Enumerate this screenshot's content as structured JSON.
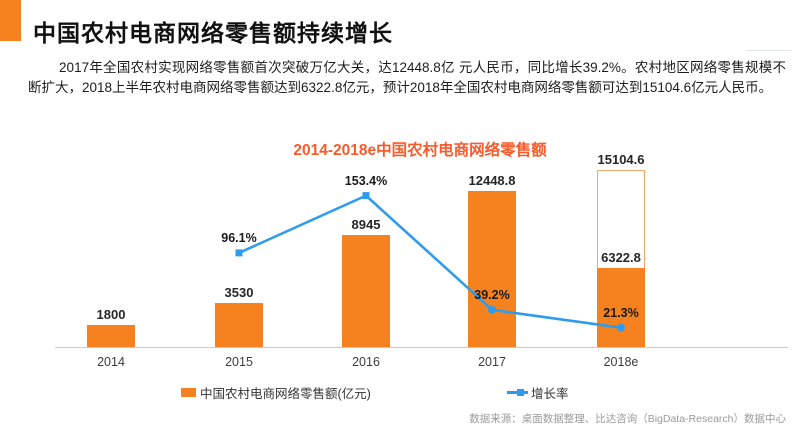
{
  "header": {
    "title": "中国农村电商网络零售额持续增长",
    "accent_color": "#F5821F"
  },
  "body_text": "2017年全国农村实现网络零售额首次突破万亿大关，达12448.8亿 元人民币，同比增长39.2%。农村地区网络零售规模不断扩大，2018上半年农村电商网络零售额达到6322.8亿元，预计2018年全国农村电商网络零售额可达到15104.6亿元人民币。",
  "chart_data": {
    "type": "bar",
    "combo": "bar+line",
    "title": "2014-2018e中国农村电商网络零售额",
    "categories": [
      "2014",
      "2015",
      "2016",
      "2017",
      "2018e"
    ],
    "series": [
      {
        "name": "中国农村电商网络零售额(亿元)",
        "type": "bar",
        "values": [
          1800,
          3530,
          8945,
          12448.8,
          6322.8
        ],
        "color": "#F5821F"
      },
      {
        "name": "增长率",
        "type": "line",
        "unit": "%",
        "values": [
          null,
          96.1,
          153.4,
          39.2,
          21.3
        ],
        "color": "#2F9BEC"
      }
    ],
    "forecast": {
      "category": "2018e",
      "total_value": 15104.6,
      "achieved_value": 6322.8,
      "style": "outlined-bar"
    },
    "xlabel": "",
    "ylabel": "",
    "ylim": [
      0,
      16000
    ],
    "gridlines": false,
    "legend_position": "bottom"
  },
  "source_note": "数据来源：桌面数据整理、比达咨询（BigData-Research）数据中心"
}
